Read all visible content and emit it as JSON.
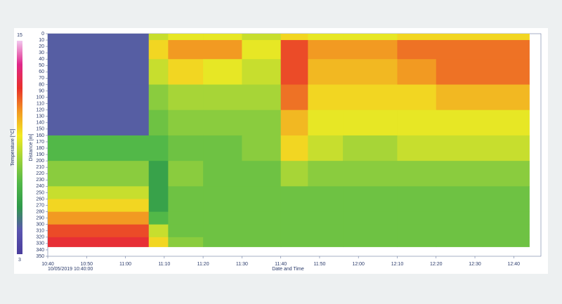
{
  "chart_data": {
    "type": "heatmap",
    "x_label": "Date and Time",
    "y_label": "Distance [m]",
    "colorbar_label": "Temperature [°C]",
    "start_label": "10/05/2019 10:40:00",
    "xlim": [
      640,
      767
    ],
    "xticks": [
      {
        "value": 640,
        "label": "10:40"
      },
      {
        "value": 650,
        "label": "10:50"
      },
      {
        "value": 660,
        "label": "11:00"
      },
      {
        "value": 670,
        "label": "11:10"
      },
      {
        "value": 680,
        "label": "11:20"
      },
      {
        "value": 690,
        "label": "11:30"
      },
      {
        "value": 700,
        "label": "11:40"
      },
      {
        "value": 710,
        "label": "11:50"
      },
      {
        "value": 720,
        "label": "12:00"
      },
      {
        "value": 730,
        "label": "12:10"
      },
      {
        "value": 740,
        "label": "12:20"
      },
      {
        "value": 750,
        "label": "12:30"
      },
      {
        "value": 760,
        "label": "12:40"
      }
    ],
    "ylim": [
      0,
      350
    ],
    "yticks": [
      0,
      10,
      20,
      30,
      40,
      50,
      60,
      70,
      80,
      90,
      100,
      110,
      120,
      130,
      140,
      150,
      160,
      170,
      180,
      190,
      200,
      210,
      220,
      230,
      240,
      250,
      260,
      270,
      280,
      290,
      300,
      310,
      320,
      330,
      340,
      350
    ],
    "y_inverted": true,
    "x_bins": [
      640,
      653,
      666,
      671,
      680,
      690,
      700,
      707,
      716,
      730,
      740,
      752,
      764
    ],
    "y_bins": [
      0,
      10,
      40,
      80,
      120,
      160,
      200,
      240,
      260,
      280,
      300,
      320,
      335
    ],
    "clim": [
      3,
      15
    ],
    "cticks": [
      15,
      3
    ],
    "colormap": [
      "#4a3d9c",
      "#5b55b0",
      "#2f9a4a",
      "#52b848",
      "#9cd23a",
      "#f2ea22",
      "#f29a22",
      "#e8302a",
      "#e0268a",
      "#f2c8ee"
    ],
    "values": [
      [
        4.5,
        4.5,
        9,
        9.5,
        9.5,
        9,
        10,
        9.5,
        9.5,
        10,
        10,
        10
      ],
      [
        4.5,
        4.5,
        10,
        11,
        11,
        9.5,
        12,
        11,
        11,
        11.5,
        11.5,
        11.5
      ],
      [
        4.5,
        4.5,
        9,
        10,
        9.5,
        9,
        12,
        10.5,
        10.5,
        11,
        11.5,
        11.5
      ],
      [
        4.5,
        4.5,
        8,
        8.5,
        8.5,
        8.5,
        11.5,
        10,
        10,
        10,
        10.5,
        10.5
      ],
      [
        4.5,
        4.5,
        7.5,
        8,
        8,
        8,
        10.5,
        9.5,
        9.5,
        9.5,
        9.5,
        9.5
      ],
      [
        7,
        7,
        7,
        7.5,
        7.5,
        8,
        10,
        9,
        8.5,
        9,
        9,
        9
      ],
      [
        8,
        8,
        6,
        8,
        7.5,
        7.5,
        8.5,
        8,
        8,
        8,
        8,
        8
      ],
      [
        9,
        9,
        6,
        7.5,
        7.5,
        7.5,
        7.5,
        7.5,
        7.5,
        7.5,
        7.5,
        7.5
      ],
      [
        10,
        10,
        6,
        7.5,
        7.5,
        7.5,
        7.5,
        7.5,
        7.5,
        7.5,
        7.5,
        7.5
      ],
      [
        11,
        11,
        7,
        7.5,
        7.5,
        7.5,
        7.5,
        7.5,
        7.5,
        7.5,
        7.5,
        7.5
      ],
      [
        12,
        12,
        9,
        7.5,
        7.5,
        7.5,
        7.5,
        7.5,
        7.5,
        7.5,
        7.5,
        7.5
      ],
      [
        12.5,
        12.5,
        10,
        8,
        7.5,
        7.5,
        7.5,
        7.5,
        7.5,
        7.5,
        7.5,
        7.5
      ]
    ]
  }
}
